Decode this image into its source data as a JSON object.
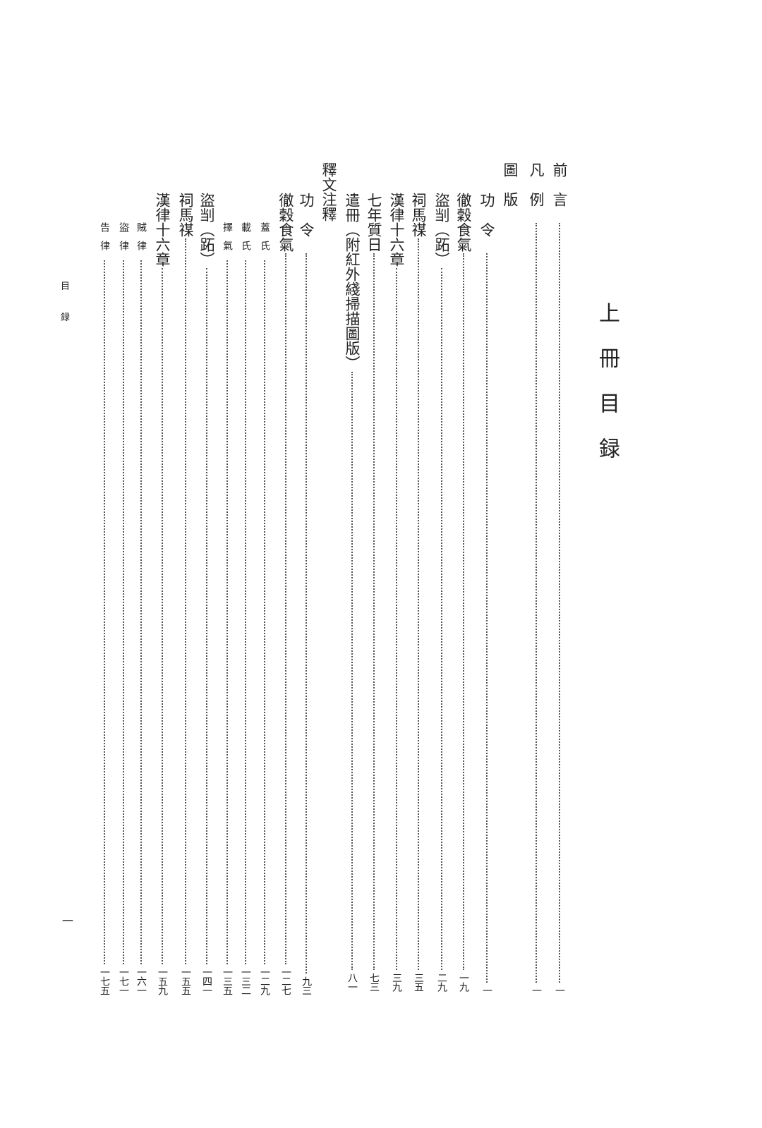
{
  "title": "上冊目録",
  "running_head": [
    "目",
    "録"
  ],
  "folio": "一",
  "entries": [
    {
      "title": "前言",
      "page": "一"
    },
    {
      "title": "凡例",
      "page": "一"
    },
    {
      "title": "圖版",
      "page": ""
    },
    {
      "title": "功令",
      "page": "一"
    },
    {
      "title": "徹穀食氣",
      "page": "一九"
    },
    {
      "title": "盜㓥（跖）",
      "page": "二九"
    },
    {
      "title": "祠馬禖",
      "page": "三五"
    },
    {
      "title": "漢律十六章",
      "page": "三九"
    },
    {
      "title": "七年質日",
      "page": "七三"
    },
    {
      "title": "遣冊（附紅外綫掃描圖版）",
      "page": "八一"
    },
    {
      "title": "釋文注釋",
      "page": ""
    },
    {
      "title": "功令",
      "page": "九三"
    },
    {
      "title": "徹穀食氣",
      "page": "一二七"
    },
    {
      "title": "蓋氏",
      "page": "一二九"
    },
    {
      "title": "載氏",
      "page": "一三二"
    },
    {
      "title": "擇氣",
      "page": "一三五"
    },
    {
      "title": "盜㓥（跖）",
      "page": "一四一"
    },
    {
      "title": "祠馬禖",
      "page": "一五五"
    },
    {
      "title": "漢律十六章",
      "page": "一五九"
    },
    {
      "title": "賊律",
      "page": "一六一"
    },
    {
      "title": "盜律",
      "page": "一七一"
    },
    {
      "title": "告律",
      "page": "一七五"
    }
  ]
}
